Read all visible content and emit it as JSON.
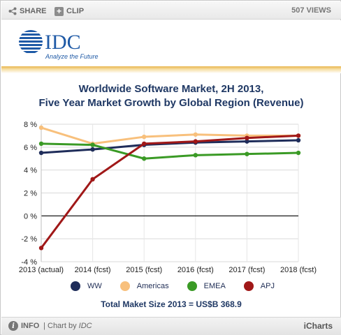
{
  "toolbar": {
    "share_label": "SHARE",
    "clip_label": "CLIP",
    "views_label": "507 VIEWS"
  },
  "logo": {
    "name": "IDC",
    "tagline": "Analyze the Future",
    "color": "#1f5aa6"
  },
  "footer": {
    "info_label": "INFO",
    "separator": "|",
    "chart_by_prefix": "Chart by ",
    "chart_by_name": "IDC",
    "brand": "iCharts"
  },
  "total_label": "Total Maket Size 2013 = US$B 368.9",
  "chart_data": {
    "type": "line",
    "title": "Worldwide Software Market, 2H 2013,",
    "subtitle": "Five Year Market Growth by Global Region (Revenue)",
    "categories": [
      "2013 (actual)",
      "2014 (fcst)",
      "2015 (fcst)",
      "2016 (fcst)",
      "2017 (fcst)",
      "2018 (fcst)"
    ],
    "ylim": [
      -4,
      8
    ],
    "yticks": [
      -4,
      -2,
      0,
      2,
      4,
      6,
      8
    ],
    "ytick_labels": [
      "-4 %",
      "-2 %",
      "0 %",
      "2 %",
      "4 %",
      "6 %",
      "8 %"
    ],
    "grid": true,
    "legend_position": "bottom",
    "series": [
      {
        "name": "WW",
        "color": "#1f2d5a",
        "values": [
          5.5,
          5.8,
          6.2,
          6.4,
          6.5,
          6.6
        ]
      },
      {
        "name": "Americas",
        "color": "#f8c07c",
        "values": [
          7.7,
          6.3,
          6.9,
          7.1,
          7.0,
          7.0
        ]
      },
      {
        "name": "EMEA",
        "color": "#3a9a25",
        "values": [
          6.3,
          6.2,
          5.0,
          5.3,
          5.4,
          5.5
        ]
      },
      {
        "name": "APJ",
        "color": "#a01818",
        "values": [
          -2.8,
          3.2,
          6.3,
          6.5,
          6.8,
          7.0
        ]
      }
    ]
  }
}
